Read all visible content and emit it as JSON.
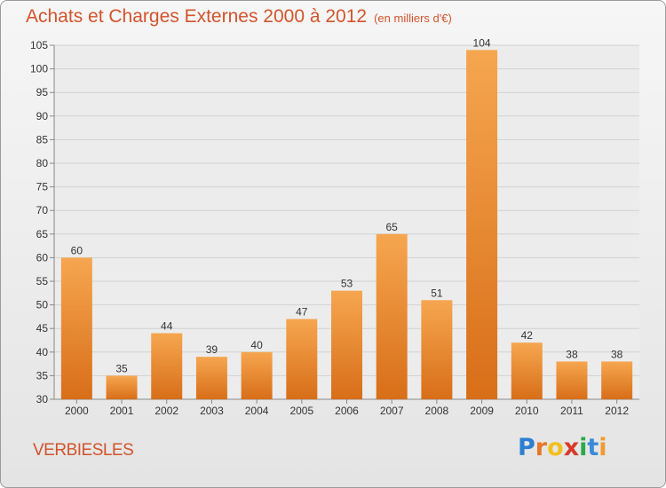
{
  "chart_data": {
    "type": "bar",
    "title": "Achats et Charges Externes 2000 à 2012",
    "unit": "(en milliers d'€)",
    "categories": [
      "2000",
      "2001",
      "2002",
      "2003",
      "2004",
      "2005",
      "2006",
      "2007",
      "2008",
      "2009",
      "2010",
      "2011",
      "2012"
    ],
    "values": [
      60,
      35,
      44,
      39,
      40,
      47,
      53,
      65,
      51,
      104,
      42,
      38,
      38
    ],
    "ylim": [
      30,
      105
    ],
    "yticks": [
      30,
      35,
      40,
      45,
      50,
      55,
      60,
      65,
      70,
      75,
      80,
      85,
      90,
      95,
      100,
      105
    ],
    "grid": true,
    "bar_color": "#f0902e"
  },
  "city": "VERBIESLES",
  "logo": {
    "letters": [
      "P",
      "r",
      "o",
      "x",
      "i",
      "t",
      "i"
    ],
    "colors": [
      "#2c7fd0",
      "#e8762a",
      "#f2c01e",
      "#d63a2a",
      "#2fa84a",
      "#3a8ad8",
      "#f09a30"
    ]
  }
}
